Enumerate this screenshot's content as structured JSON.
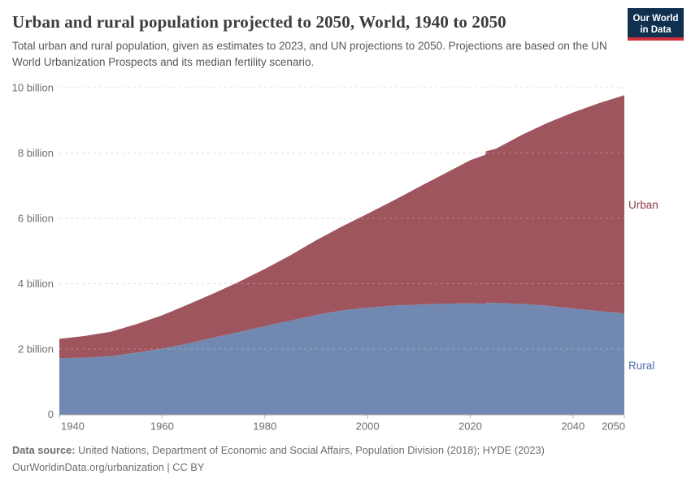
{
  "header": {
    "title": "Urban and rural population projected to 2050, World, 1940 to 2050",
    "subtitle": "Total urban and rural population, given as estimates to 2023, and UN projections to 2050. Projections are based on the UN World Urbanization Prospects and its median fertility scenario."
  },
  "logo": {
    "line1": "Our World",
    "line2": "in Data",
    "bg_color": "#103050",
    "stripe_color": "#cf303e"
  },
  "footer": {
    "source_label": "Data source:",
    "source_text": " United Nations, Department of Economic and Social Affairs, Population Division (2018); HYDE (2023)",
    "license_text": "OurWorldinData.org/urbanization | CC BY"
  },
  "chart_data": {
    "type": "area",
    "stacked": true,
    "title": "Urban and rural population projected to 2050, World, 1940 to 2050",
    "unit": "billion people",
    "x": [
      1940,
      1945,
      1950,
      1955,
      1960,
      1965,
      1970,
      1975,
      1980,
      1985,
      1990,
      1995,
      2000,
      2005,
      2010,
      2015,
      2020,
      2023,
      2023,
      2025,
      2030,
      2035,
      2040,
      2045,
      2050
    ],
    "series": [
      {
        "name": "Rural",
        "color": "#7189b0",
        "label_color": "#4e69ad",
        "values": [
          1.72,
          1.74,
          1.78,
          1.89,
          2.01,
          2.17,
          2.35,
          2.52,
          2.7,
          2.87,
          3.04,
          3.18,
          3.27,
          3.33,
          3.36,
          3.39,
          3.4,
          3.38,
          3.41,
          3.41,
          3.38,
          3.33,
          3.24,
          3.16,
          3.09
        ]
      },
      {
        "name": "Urban",
        "color": "#9e555e",
        "label_color": "#8b3e49",
        "values": [
          0.59,
          0.66,
          0.75,
          0.87,
          1.02,
          1.19,
          1.35,
          1.54,
          1.75,
          2.0,
          2.29,
          2.57,
          2.87,
          3.21,
          3.6,
          3.98,
          4.38,
          4.57,
          4.64,
          4.72,
          5.17,
          5.59,
          6.0,
          6.36,
          6.68
        ]
      }
    ],
    "xlim": [
      1940,
      2050
    ],
    "ylim": [
      0,
      10
    ],
    "grid": "dashed-horizontal",
    "legend_position": "right-of-plot",
    "xticks": [
      {
        "v": 1940,
        "label": "1940",
        "anchor": "start"
      },
      {
        "v": 1960,
        "label": "1960",
        "anchor": "middle"
      },
      {
        "v": 1980,
        "label": "1980",
        "anchor": "middle"
      },
      {
        "v": 2000,
        "label": "2000",
        "anchor": "middle"
      },
      {
        "v": 2020,
        "label": "2020",
        "anchor": "middle"
      },
      {
        "v": 2040,
        "label": "2040",
        "anchor": "middle"
      },
      {
        "v": 2050,
        "label": "2050",
        "anchor": "end"
      }
    ],
    "yticks": [
      {
        "v": 0,
        "label": "0"
      },
      {
        "v": 2,
        "label": "2 billion"
      },
      {
        "v": 4,
        "label": "4 billion"
      },
      {
        "v": 6,
        "label": "6 billion"
      },
      {
        "v": 8,
        "label": "8 billion"
      },
      {
        "v": 10,
        "label": "10 billion"
      }
    ],
    "axis_label_color": "#6e6e6e",
    "gridline_color": "#d4d4d4",
    "axis_line_color": "#9e9e9e"
  }
}
